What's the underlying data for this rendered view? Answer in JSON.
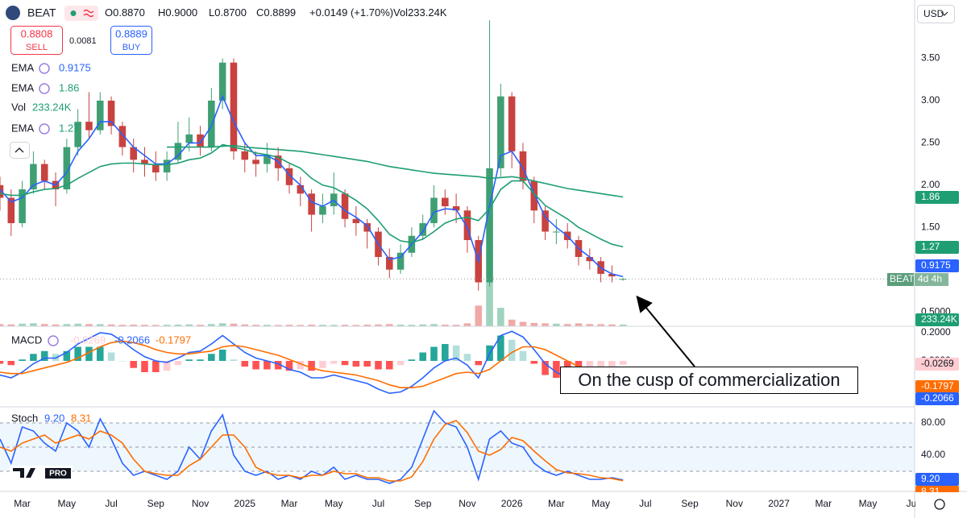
{
  "header": {
    "symbol": "BEAT",
    "quote": [
      "O0.8870",
      "H0.9000",
      "L0.8700",
      "C0.8899",
      "+0.0149 (+1.70%)",
      "Vol233.24K"
    ],
    "sell": {
      "price": "0.8808",
      "label": "SELL"
    },
    "spread": "0.0081",
    "buy": {
      "price": "0.8889",
      "label": "BUY"
    },
    "currency": "USD",
    "logo": "PRO"
  },
  "annotation": "On the cusp of commercialization",
  "chart_data": [
    {
      "type": "candlestick",
      "x": [
        -1,
        -0.5,
        0,
        0.5,
        1,
        1.5,
        2,
        2.5,
        3,
        3.5,
        4,
        4.5,
        5,
        5.5,
        6,
        6.5,
        7,
        7.5,
        8,
        8.5,
        9,
        9.5,
        10,
        10.5,
        11,
        11.5,
        12,
        12.5,
        13,
        13.5,
        14,
        14.5,
        15,
        15.5,
        16,
        16.5,
        17,
        17.5,
        18,
        18.5,
        19,
        19.5,
        20,
        20.5,
        21,
        21.5,
        22,
        22.5,
        23,
        23.5,
        24,
        24.5,
        25,
        25.5,
        26,
        26.5,
        27
      ],
      "open": [
        2.0,
        1.85,
        1.55,
        1.95,
        2.25,
        2.05,
        1.95,
        2.45,
        2.75,
        2.65,
        3.0,
        2.7,
        2.45,
        2.3,
        2.25,
        2.15,
        2.3,
        2.5,
        2.6,
        2.45,
        3.0,
        3.45,
        2.4,
        2.3,
        2.25,
        2.35,
        2.2,
        2.0,
        1.9,
        1.65,
        1.75,
        1.9,
        1.6,
        1.55,
        1.45,
        1.15,
        1.0,
        1.2,
        1.4,
        1.55,
        1.85,
        1.75,
        1.7,
        1.35,
        0.85,
        2.2,
        3.05,
        2.4,
        2.05,
        1.7,
        1.45,
        1.45,
        1.35,
        1.15,
        1.1,
        0.95,
        0.887
      ],
      "high": [
        2.1,
        1.95,
        2.05,
        2.4,
        2.3,
        2.15,
        2.55,
        2.9,
        3.1,
        3.1,
        3.05,
        2.75,
        2.55,
        2.45,
        2.4,
        2.4,
        2.75,
        2.8,
        2.7,
        3.15,
        3.5,
        3.5,
        2.5,
        2.4,
        2.5,
        2.45,
        2.25,
        2.1,
        1.95,
        1.9,
        2.15,
        1.95,
        1.75,
        1.6,
        1.5,
        1.25,
        1.3,
        1.5,
        1.65,
        2.0,
        1.95,
        1.9,
        1.75,
        1.4,
        3.95,
        3.2,
        3.1,
        2.5,
        2.1,
        1.75,
        1.6,
        1.55,
        1.4,
        1.25,
        1.15,
        1.05,
        0.9
      ],
      "low": [
        1.7,
        1.4,
        1.5,
        1.9,
        1.95,
        1.75,
        1.9,
        2.35,
        2.55,
        2.6,
        2.6,
        2.35,
        2.15,
        2.1,
        2.05,
        2.05,
        2.25,
        2.4,
        2.35,
        2.4,
        2.9,
        2.3,
        2.15,
        2.1,
        2.15,
        2.05,
        1.9,
        1.75,
        1.45,
        1.55,
        1.65,
        1.5,
        1.4,
        1.25,
        1.05,
        0.9,
        0.95,
        1.15,
        1.35,
        1.5,
        1.65,
        1.55,
        1.2,
        0.75,
        0.8,
        2.1,
        2.2,
        1.95,
        1.55,
        1.35,
        1.3,
        1.25,
        1.05,
        1.0,
        0.85,
        0.85,
        0.87
      ],
      "close": [
        1.85,
        1.55,
        1.95,
        2.25,
        2.05,
        1.95,
        2.45,
        2.75,
        2.65,
        3.0,
        2.7,
        2.45,
        2.3,
        2.25,
        2.15,
        2.3,
        2.5,
        2.6,
        2.45,
        3.0,
        3.45,
        2.4,
        2.3,
        2.25,
        2.35,
        2.2,
        2.0,
        1.9,
        1.65,
        1.75,
        1.9,
        1.6,
        1.55,
        1.45,
        1.15,
        1.0,
        1.2,
        1.4,
        1.55,
        1.85,
        1.75,
        1.7,
        1.35,
        0.85,
        2.2,
        3.05,
        2.4,
        2.05,
        1.7,
        1.45,
        1.45,
        1.35,
        1.15,
        1.1,
        0.95,
        0.92,
        0.8899
      ],
      "colors": {
        "up": "#3f9f73",
        "down": "#c8423f"
      },
      "series": [
        {
          "name": "EMA",
          "label": "0.9175",
          "type": "line",
          "color": "#2962ff",
          "values": [
            1.95,
            1.8,
            1.85,
            2.0,
            2.05,
            2.0,
            2.15,
            2.4,
            2.55,
            2.75,
            2.75,
            2.6,
            2.45,
            2.35,
            2.25,
            2.25,
            2.35,
            2.5,
            2.5,
            2.7,
            3.05,
            2.75,
            2.5,
            2.35,
            2.35,
            2.28,
            2.12,
            2.0,
            1.8,
            1.75,
            1.82,
            1.7,
            1.62,
            1.52,
            1.3,
            1.12,
            1.15,
            1.3,
            1.45,
            1.68,
            1.72,
            1.71,
            1.5,
            1.1,
            1.75,
            2.35,
            2.4,
            2.2,
            1.9,
            1.62,
            1.5,
            1.4,
            1.25,
            1.15,
            1.02,
            0.95,
            0.9175
          ]
        },
        {
          "name": "EMA",
          "label": "1.86",
          "type": "line",
          "color": "#1e9e72",
          "values": [
            null,
            null,
            null,
            null,
            null,
            null,
            null,
            null,
            null,
            null,
            null,
            null,
            null,
            null,
            null,
            2.45,
            2.45,
            2.45,
            2.45,
            2.45,
            2.46,
            2.47,
            2.45,
            2.44,
            2.43,
            2.42,
            2.41,
            2.4,
            2.38,
            2.36,
            2.34,
            2.32,
            2.3,
            2.28,
            2.25,
            2.22,
            2.2,
            2.18,
            2.16,
            2.14,
            2.13,
            2.12,
            2.11,
            2.1,
            2.08,
            2.09,
            2.1,
            2.08,
            2.05,
            2.02,
            1.99,
            1.96,
            1.94,
            1.92,
            1.9,
            1.88,
            1.86
          ]
        },
        {
          "name": "Vol",
          "label": "233.24K",
          "type": "bar",
          "axis": "y2",
          "color": "#1e9e72",
          "colors": [
            "#9fd3bd",
            "#f0a9a7"
          ],
          "values": [
            300,
            250,
            350,
            400,
            300,
            250,
            300,
            350,
            300,
            280,
            250,
            200,
            220,
            200,
            180,
            200,
            220,
            250,
            200,
            300,
            400,
            350,
            250,
            200,
            200,
            180,
            200,
            180,
            220,
            200,
            180,
            200,
            180,
            220,
            250,
            300,
            220,
            200,
            250,
            300,
            220,
            200,
            400,
            2800,
            6000,
            2500,
            900,
            600,
            450,
            400,
            350,
            300,
            400,
            300,
            280,
            250,
            233.24
          ]
        },
        {
          "name": "EMA",
          "label": "1.27",
          "type": "line",
          "color": "#1e9e72",
          "values": [
            1.9,
            1.88,
            1.88,
            1.92,
            1.95,
            1.96,
            2.0,
            2.08,
            2.15,
            2.22,
            2.25,
            2.26,
            2.26,
            2.25,
            2.24,
            2.24,
            2.26,
            2.3,
            2.32,
            2.38,
            2.48,
            2.45,
            2.42,
            2.38,
            2.36,
            2.33,
            2.26,
            2.2,
            2.08,
            2.0,
            1.97,
            1.9,
            1.82,
            1.72,
            1.58,
            1.42,
            1.34,
            1.32,
            1.36,
            1.45,
            1.55,
            1.6,
            1.62,
            1.58,
            1.72,
            1.95,
            2.05,
            2.05,
            1.9,
            1.76,
            1.68,
            1.6,
            1.5,
            1.43,
            1.36,
            1.3,
            1.27
          ]
        }
      ],
      "xlim": [
        -1,
        40.1
      ],
      "xticks": [
        {
          "value": 0,
          "label": "Mar"
        },
        {
          "value": 2,
          "label": "May"
        },
        {
          "value": 4,
          "label": "Jul"
        },
        {
          "value": 6,
          "label": "Sep"
        },
        {
          "value": 8,
          "label": "Nov"
        },
        {
          "value": 10,
          "label": "2025"
        },
        {
          "value": 12,
          "label": "Mar"
        },
        {
          "value": 14,
          "label": "May"
        },
        {
          "value": 16,
          "label": "Jul"
        },
        {
          "value": 18,
          "label": "Sep"
        },
        {
          "value": 20,
          "label": "Nov"
        },
        {
          "value": 22,
          "label": "2026"
        },
        {
          "value": 24,
          "label": "Mar"
        },
        {
          "value": 26,
          "label": "May"
        },
        {
          "value": 28,
          "label": "Jul"
        },
        {
          "value": 30,
          "label": "Sep"
        },
        {
          "value": 32,
          "label": "Nov"
        },
        {
          "value": 34,
          "label": "2027"
        },
        {
          "value": 36,
          "label": "Mar"
        },
        {
          "value": 38,
          "label": "May"
        },
        {
          "value": 40,
          "label": "Jul"
        }
      ],
      "ylim": [
        0.33,
        4.0
      ],
      "yticks": [
        {
          "value": 3.5,
          "label": "3.50"
        },
        {
          "value": 3,
          "label": "3.00"
        },
        {
          "value": 2.5,
          "label": "2.50"
        },
        {
          "value": 2,
          "label": "2.00"
        },
        {
          "value": 1.5,
          "label": "1.50"
        },
        {
          "value": 0.5,
          "label": "0.5000"
        }
      ],
      "y2lim": [
        0,
        42000
      ],
      "badges": [
        {
          "text": "1.86",
          "color": "#1e9e72"
        },
        {
          "text": "1.27",
          "color": "#1e9e72"
        },
        {
          "text": "0.9175",
          "color": "#2962ff"
        },
        {
          "text": "BEAT",
          "text2": "4d 4h",
          "color": "#5b9d7b"
        },
        {
          "text": "233.24K",
          "color": "#1e9e72"
        }
      ]
    },
    {
      "type": "line",
      "title": "MACD",
      "series": [
        {
          "label": "-0.2066",
          "type": "line",
          "color": "#2962ff",
          "values": [
            -0.1,
            -0.12,
            -0.08,
            -0.02,
            0.02,
            0.02,
            0.06,
            0.12,
            0.16,
            0.2,
            0.19,
            0.14,
            0.08,
            0.03,
            0.0,
            -0.01,
            0.02,
            0.06,
            0.07,
            0.12,
            0.18,
            0.12,
            0.06,
            0.02,
            0.0,
            -0.02,
            -0.06,
            -0.08,
            -0.12,
            -0.12,
            -0.1,
            -0.12,
            -0.14,
            -0.16,
            -0.2,
            -0.23,
            -0.22,
            -0.18,
            -0.12,
            -0.05,
            0.0,
            0.02,
            -0.03,
            -0.12,
            0.05,
            0.18,
            0.21,
            0.17,
            0.08,
            -0.02,
            -0.08,
            -0.12,
            -0.16,
            -0.18,
            -0.2,
            -0.21,
            -0.2066
          ]
        },
        {
          "label": "-0.1797",
          "type": "line",
          "color": "#ff6d00",
          "values": [
            -0.08,
            -0.09,
            -0.09,
            -0.07,
            -0.05,
            -0.03,
            -0.01,
            0.02,
            0.06,
            0.1,
            0.13,
            0.14,
            0.13,
            0.11,
            0.08,
            0.06,
            0.05,
            0.05,
            0.06,
            0.07,
            0.1,
            0.11,
            0.1,
            0.08,
            0.06,
            0.04,
            0.01,
            -0.02,
            -0.05,
            -0.07,
            -0.08,
            -0.09,
            -0.1,
            -0.12,
            -0.14,
            -0.17,
            -0.19,
            -0.19,
            -0.18,
            -0.15,
            -0.12,
            -0.09,
            -0.08,
            -0.09,
            -0.06,
            0.0,
            0.06,
            0.1,
            0.1,
            0.08,
            0.04,
            0.0,
            -0.04,
            -0.08,
            -0.12,
            -0.16,
            -0.1797
          ]
        },
        {
          "label": "-0.0269",
          "type": "bar",
          "color": "#ffcdd2",
          "colors": [
            "#26a69a",
            "#b2dfdb",
            "#ff5252",
            "#ffcdd2"
          ],
          "values": [
            -0.02,
            -0.03,
            0.01,
            0.05,
            0.07,
            0.05,
            0.07,
            0.1,
            0.1,
            0.1,
            0.06,
            0.0,
            -0.05,
            -0.08,
            -0.08,
            -0.07,
            -0.03,
            0.01,
            0.01,
            0.05,
            0.08,
            0.01,
            -0.04,
            -0.06,
            -0.06,
            -0.06,
            -0.07,
            -0.06,
            -0.07,
            -0.05,
            -0.02,
            -0.03,
            -0.04,
            -0.04,
            -0.06,
            -0.06,
            -0.03,
            0.01,
            0.06,
            0.1,
            0.12,
            0.11,
            0.05,
            -0.03,
            0.11,
            0.18,
            0.15,
            0.07,
            -0.02,
            -0.1,
            -0.12,
            -0.12,
            -0.12,
            -0.1,
            -0.08,
            -0.05,
            -0.0269
          ]
        }
      ],
      "ylim": [
        -0.326,
        0.246
      ],
      "yticks": [
        {
          "value": 0.2,
          "label": "0.2000"
        },
        {
          "value": 0,
          "label": "0.0000"
        }
      ],
      "badges": [
        {
          "text": "-0.0269",
          "color": "#ffcdd2",
          "text_color": "#131722"
        },
        {
          "text": "-0.1797",
          "color": "#ff6d00"
        },
        {
          "text": "-0.2066",
          "color": "#2962ff"
        }
      ]
    },
    {
      "type": "line",
      "title": "Stoch",
      "series": [
        {
          "label": "9.20",
          "type": "line",
          "color": "#2962ff",
          "values": [
            60,
            30,
            75,
            70,
            55,
            45,
            80,
            70,
            50,
            85,
            60,
            30,
            15,
            20,
            15,
            10,
            20,
            50,
            35,
            70,
            90,
            40,
            20,
            15,
            20,
            10,
            15,
            10,
            20,
            15,
            25,
            10,
            15,
            10,
            10,
            5,
            10,
            25,
            60,
            95,
            80,
            75,
            50,
            10,
            60,
            70,
            55,
            50,
            30,
            20,
            15,
            20,
            15,
            10,
            10,
            12,
            9.2
          ]
        },
        {
          "label": "8.31",
          "type": "line",
          "color": "#ff6d00",
          "values": [
            50,
            45,
            55,
            60,
            65,
            55,
            60,
            65,
            60,
            70,
            65,
            55,
            35,
            20,
            17,
            15,
            15,
            27,
            35,
            50,
            65,
            65,
            50,
            25,
            18,
            15,
            15,
            12,
            15,
            15,
            20,
            17,
            17,
            12,
            12,
            8,
            8,
            13,
            32,
            60,
            78,
            83,
            68,
            45,
            40,
            47,
            62,
            58,
            45,
            33,
            22,
            18,
            17,
            15,
            12,
            11,
            8.31
          ]
        }
      ],
      "levels": [
        80,
        50,
        20
      ],
      "ylim": [
        -5,
        100
      ],
      "yticks": [
        {
          "value": 80,
          "label": "80.00"
        },
        {
          "value": 40,
          "label": "40.00"
        }
      ],
      "badges": [
        {
          "text": "9.20",
          "color": "#2962ff"
        },
        {
          "text": "8.31",
          "color": "#ff6d00"
        }
      ]
    }
  ]
}
